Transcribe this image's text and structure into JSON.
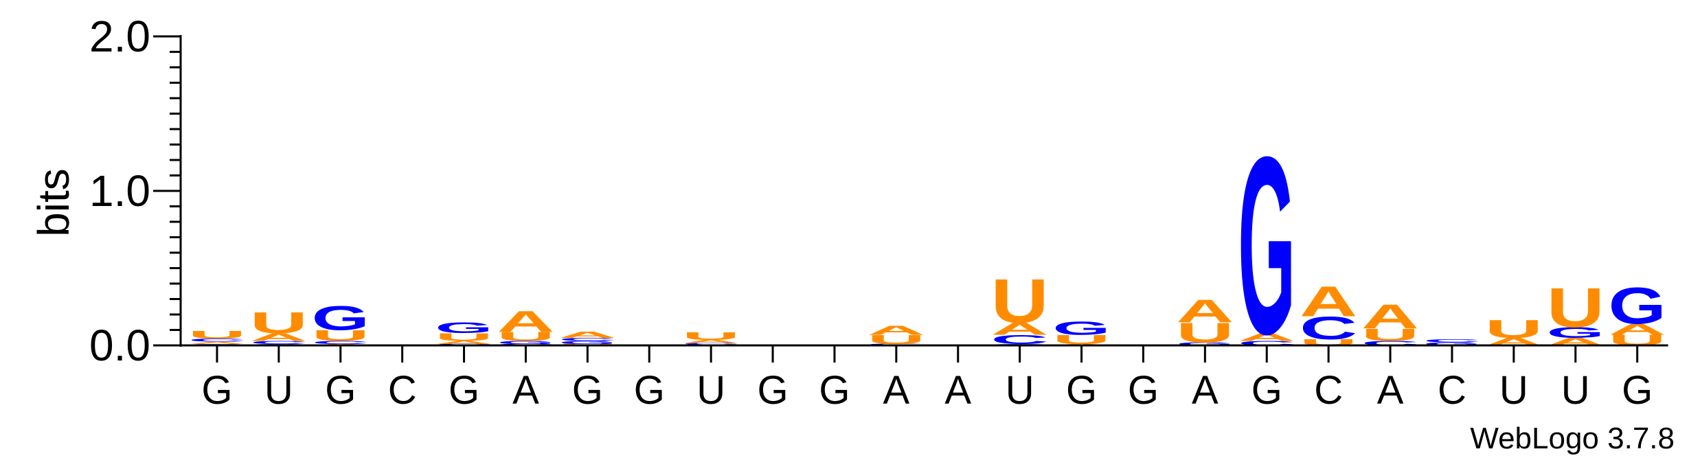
{
  "chart_data": {
    "type": "sequence-logo",
    "ylabel": "bits",
    "ylim": [
      0,
      2.0
    ],
    "yticks": [
      {
        "value": 0.0,
        "label": "0.0"
      },
      {
        "value": 1.0,
        "label": "1.0"
      },
      {
        "value": 2.0,
        "label": "2.0"
      }
    ],
    "xtick_labels": [
      "G",
      "U",
      "G",
      "C",
      "G",
      "A",
      "G",
      "G",
      "U",
      "G",
      "G",
      "A",
      "A",
      "U",
      "G",
      "G",
      "A",
      "G",
      "C",
      "A",
      "C",
      "U",
      "U",
      "G"
    ],
    "colors": {
      "A": "#ff8c00",
      "U": "#ff8c00",
      "G": "#0000ff",
      "C": "#0000ff"
    },
    "positions": [
      {
        "stack": [
          {
            "letter": "G",
            "bits": 0.01
          },
          {
            "letter": "A",
            "bits": 0.015
          },
          {
            "letter": "C",
            "bits": 0.02
          },
          {
            "letter": "U",
            "bits": 0.05
          }
        ]
      },
      {
        "stack": [
          {
            "letter": "G",
            "bits": 0.01
          },
          {
            "letter": "C",
            "bits": 0.02
          },
          {
            "letter": "A",
            "bits": 0.05
          },
          {
            "letter": "U",
            "bits": 0.14
          }
        ]
      },
      {
        "stack": [
          {
            "letter": "A",
            "bits": 0.01
          },
          {
            "letter": "C",
            "bits": 0.02
          },
          {
            "letter": "U",
            "bits": 0.07
          },
          {
            "letter": "G",
            "bits": 0.16
          }
        ]
      },
      {
        "stack": []
      },
      {
        "stack": [
          {
            "letter": "C",
            "bits": 0.01
          },
          {
            "letter": "A",
            "bits": 0.02
          },
          {
            "letter": "U",
            "bits": 0.05
          },
          {
            "letter": "G",
            "bits": 0.07
          }
        ]
      },
      {
        "stack": [
          {
            "letter": "C",
            "bits": 0.01
          },
          {
            "letter": "G",
            "bits": 0.02
          },
          {
            "letter": "U",
            "bits": 0.06
          },
          {
            "letter": "A",
            "bits": 0.14
          }
        ]
      },
      {
        "stack": [
          {
            "letter": "U",
            "bits": 0.01
          },
          {
            "letter": "G",
            "bits": 0.02
          },
          {
            "letter": "C",
            "bits": 0.02
          },
          {
            "letter": "A",
            "bits": 0.04
          }
        ]
      },
      {
        "stack": []
      },
      {
        "stack": [
          {
            "letter": "G",
            "bits": 0.005
          },
          {
            "letter": "C",
            "bits": 0.01
          },
          {
            "letter": "A",
            "bits": 0.02
          },
          {
            "letter": "U",
            "bits": 0.05
          }
        ]
      },
      {
        "stack": []
      },
      {
        "stack": []
      },
      {
        "stack": [
          {
            "letter": "G",
            "bits": 0.005
          },
          {
            "letter": "C",
            "bits": 0.005
          },
          {
            "letter": "U",
            "bits": 0.06
          },
          {
            "letter": "A",
            "bits": 0.06
          }
        ]
      },
      {
        "stack": []
      },
      {
        "stack": [
          {
            "letter": "G",
            "bits": 0.01
          },
          {
            "letter": "C",
            "bits": 0.06
          },
          {
            "letter": "A",
            "bits": 0.08
          },
          {
            "letter": "U",
            "bits": 0.29
          }
        ]
      },
      {
        "stack": [
          {
            "letter": "A",
            "bits": 0.01
          },
          {
            "letter": "U",
            "bits": 0.06
          },
          {
            "letter": "G",
            "bits": 0.09
          }
        ]
      },
      {
        "stack": []
      },
      {
        "stack": [
          {
            "letter": "G",
            "bits": 0.02
          },
          {
            "letter": "U",
            "bits": 0.13
          },
          {
            "letter": "A",
            "bits": 0.15
          }
        ]
      },
      {
        "stack": [
          {
            "letter": "C",
            "bits": 0.03
          },
          {
            "letter": "A",
            "bits": 0.05
          },
          {
            "letter": "G",
            "bits": 1.18
          }
        ]
      },
      {
        "stack": [
          {
            "letter": "U",
            "bits": 0.04
          },
          {
            "letter": "C",
            "bits": 0.15
          },
          {
            "letter": "A",
            "bits": 0.2
          }
        ]
      },
      {
        "stack": [
          {
            "letter": "C",
            "bits": 0.03
          },
          {
            "letter": "U",
            "bits": 0.08
          },
          {
            "letter": "A",
            "bits": 0.16
          }
        ]
      },
      {
        "stack": [
          {
            "letter": "G",
            "bits": 0.02
          },
          {
            "letter": "C",
            "bits": 0.02
          }
        ]
      },
      {
        "stack": [
          {
            "letter": "A",
            "bits": 0.05
          },
          {
            "letter": "U",
            "bits": 0.12
          }
        ]
      },
      {
        "stack": [
          {
            "letter": "A",
            "bits": 0.05
          },
          {
            "letter": "G",
            "bits": 0.07
          },
          {
            "letter": "U",
            "bits": 0.26
          }
        ]
      },
      {
        "stack": [
          {
            "letter": "U",
            "bits": 0.07
          },
          {
            "letter": "A",
            "bits": 0.07
          },
          {
            "letter": "G",
            "bits": 0.24
          }
        ]
      }
    ],
    "credit": "WebLogo 3.7.8"
  }
}
